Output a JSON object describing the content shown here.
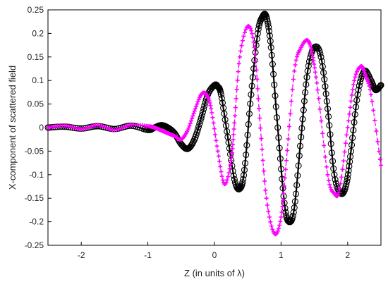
{
  "chart_data": {
    "type": "line",
    "title": "",
    "xlabel": "Z (in units of λ)",
    "ylabel": "X-component of scattered field",
    "xlim": [
      -2.5,
      2.5
    ],
    "ylim": [
      -0.25,
      0.25
    ],
    "x_ticks": [
      -2,
      -1,
      0,
      1,
      2
    ],
    "x_tick_labels": [
      "-2",
      "-1",
      "0",
      "1",
      "2"
    ],
    "y_ticks": [
      -0.25,
      -0.2,
      -0.15,
      -0.1,
      -0.05,
      0,
      0.05,
      0.1,
      0.15,
      0.2,
      0.25
    ],
    "y_tick_labels": [
      "-0.25",
      "-0.2",
      "-0.15",
      "-0.1",
      "-0.05",
      "0",
      "0.05",
      "0.1",
      "0.15",
      "0.2",
      "0.25"
    ],
    "grid": false,
    "legend": "none",
    "series": [
      {
        "color": "#000000",
        "style": "solid line with circle markers",
        "x": [
          -2.5,
          -2.25,
          -2.0,
          -1.75,
          -1.5,
          -1.25,
          -1.0,
          -0.9,
          -0.8,
          -0.7,
          -0.6,
          -0.5,
          -0.4,
          -0.3,
          -0.2,
          -0.1,
          0.0,
          0.05,
          0.1,
          0.2,
          0.3,
          0.38,
          0.45,
          0.55,
          0.65,
          0.72,
          0.78,
          0.85,
          0.95,
          1.05,
          1.12,
          1.2,
          1.3,
          1.4,
          1.5,
          1.6,
          1.7,
          1.8,
          1.9,
          1.98,
          2.05,
          2.15,
          2.25,
          2.35,
          2.42,
          2.5
        ],
        "y": [
          0.0,
          0.002,
          -0.002,
          0.003,
          -0.003,
          0.004,
          -0.005,
          0.0,
          0.005,
          0.0,
          -0.012,
          -0.035,
          -0.045,
          -0.025,
          0.02,
          0.07,
          0.09,
          0.087,
          0.07,
          -0.02,
          -0.11,
          -0.13,
          -0.09,
          0.07,
          0.2,
          0.235,
          0.235,
          0.17,
          0.0,
          -0.16,
          -0.2,
          -0.17,
          -0.02,
          0.12,
          0.17,
          0.15,
          0.04,
          -0.1,
          -0.14,
          -0.12,
          -0.05,
          0.07,
          0.12,
          0.1,
          0.08,
          0.09
        ]
      },
      {
        "color": "#ff00ff",
        "style": "dashed line with plus markers",
        "x": [
          -2.5,
          -2.25,
          -2.0,
          -1.75,
          -1.5,
          -1.25,
          -1.0,
          -0.9,
          -0.8,
          -0.7,
          -0.6,
          -0.5,
          -0.4,
          -0.3,
          -0.2,
          -0.12,
          -0.05,
          0.05,
          0.15,
          0.25,
          0.3,
          0.38,
          0.5,
          0.6,
          0.68,
          0.78,
          0.9,
          1.0,
          1.08,
          1.2,
          1.3,
          1.4,
          1.47,
          1.55,
          1.7,
          1.8,
          1.88,
          2.0,
          2.1,
          2.2,
          2.27,
          2.35,
          2.5
        ],
        "y": [
          0.0,
          0.004,
          -0.003,
          0.005,
          -0.005,
          0.006,
          0.003,
          0.0,
          -0.006,
          -0.012,
          -0.018,
          -0.025,
          -0.005,
          0.035,
          0.07,
          0.07,
          0.04,
          -0.05,
          -0.12,
          -0.07,
          0.01,
          0.15,
          0.215,
          0.17,
          0.02,
          -0.15,
          -0.225,
          -0.19,
          -0.07,
          0.12,
          0.17,
          0.185,
          0.155,
          0.08,
          -0.1,
          -0.14,
          -0.13,
          0.0,
          0.1,
          0.13,
          0.11,
          0.07,
          -0.08
        ]
      }
    ]
  }
}
